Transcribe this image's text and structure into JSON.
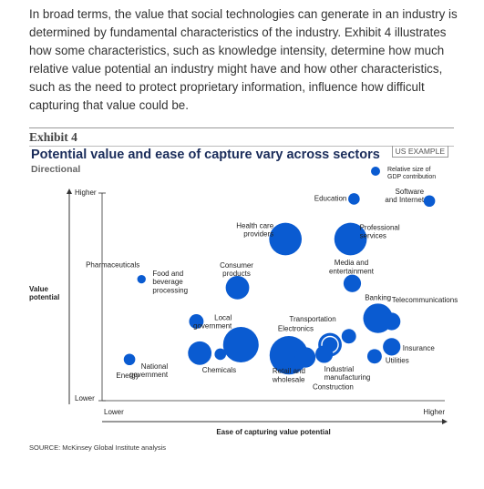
{
  "intro_text": "In broad terms, the value that social technologies can generate in an industry is determined by fundamental characteristics of the industry. Exhibit 4 illustrates how some characteristics, such as knowledge intensity, determine how much relative value potential an industry might have and how other characteristics, such as the need to protect proprietary information, influence how difficult capturing that value could be.",
  "exhibit": {
    "label": "Exhibit 4",
    "badge": "US EXAMPLE",
    "source": "SOURCE: McKinsey Global Institute analysis"
  },
  "chart_data": {
    "type": "scatter",
    "title": "Potential value and ease of capture vary across sectors",
    "subtitle": "Directional",
    "xlabel": "Ease of capturing value potential",
    "ylabel": [
      "Value",
      "potential"
    ],
    "x_ticks": [
      "Lower",
      "Higher"
    ],
    "y_ticks": [
      "Lower",
      "Higher"
    ],
    "size_legend": [
      "Relative size of",
      "GDP contribution"
    ],
    "color": "#0a5bd1",
    "points": [
      {
        "label": [
          "Education"
        ],
        "x": 0.735,
        "y": 0.955,
        "size": 2
      },
      {
        "label": [
          "Software",
          "and Internet"
        ],
        "x": 0.955,
        "y": 0.945,
        "size": 2
      },
      {
        "label": [
          "Health care",
          "providers"
        ],
        "x": 0.535,
        "y": 0.765,
        "size": 9
      },
      {
        "label": [
          "Professional",
          "services"
        ],
        "x": 0.725,
        "y": 0.765,
        "size": 9
      },
      {
        "label": [
          "Consumer",
          "products"
        ],
        "x": 0.395,
        "y": 0.535,
        "size": 6
      },
      {
        "label": [
          "Media and",
          "entertainment"
        ],
        "x": 0.73,
        "y": 0.555,
        "size": 4
      },
      {
        "label": [
          "Pharmaceuticals"
        ],
        "x": 0.115,
        "y": 0.575,
        "size": 1
      },
      {
        "label": [
          "Food and",
          "beverage",
          "processing"
        ],
        "x": 0.275,
        "y": 0.375,
        "size": 3
      },
      {
        "label": [
          "Local",
          "government"
        ],
        "x": 0.405,
        "y": 0.265,
        "size": 10
      },
      {
        "label": [
          "Electronics"
        ],
        "x": 0.665,
        "y": 0.265,
        "size": 6,
        "ring": true
      },
      {
        "label": [
          "Transportation"
        ],
        "x": 0.72,
        "y": 0.305,
        "size": 3
      },
      {
        "label": [
          "Banking"
        ],
        "x": 0.805,
        "y": 0.39,
        "size": 8
      },
      {
        "label": [
          "Telecommunications"
        ],
        "x": 0.845,
        "y": 0.375,
        "size": 4
      },
      {
        "label": [
          "Insurance"
        ],
        "x": 0.845,
        "y": 0.255,
        "size": 4
      },
      {
        "label": [
          "Utilities"
        ],
        "x": 0.795,
        "y": 0.21,
        "size": 3
      },
      {
        "label": [
          "Industrial",
          "manufacturing"
        ],
        "x": 0.648,
        "y": 0.22,
        "size": 4
      },
      {
        "label": [
          "Retail and",
          "wholesale"
        ],
        "x": 0.545,
        "y": 0.215,
        "size": 11
      },
      {
        "label": [
          "Construction"
        ],
        "x": 0.593,
        "y": 0.205,
        "size": 5
      },
      {
        "label": [
          "Chemicals"
        ],
        "x": 0.345,
        "y": 0.22,
        "size": 2
      },
      {
        "label": [
          "National",
          "government"
        ],
        "x": 0.285,
        "y": 0.225,
        "size": 6
      },
      {
        "label": [
          "Energy"
        ],
        "x": 0.08,
        "y": 0.195,
        "size": 2
      }
    ]
  }
}
